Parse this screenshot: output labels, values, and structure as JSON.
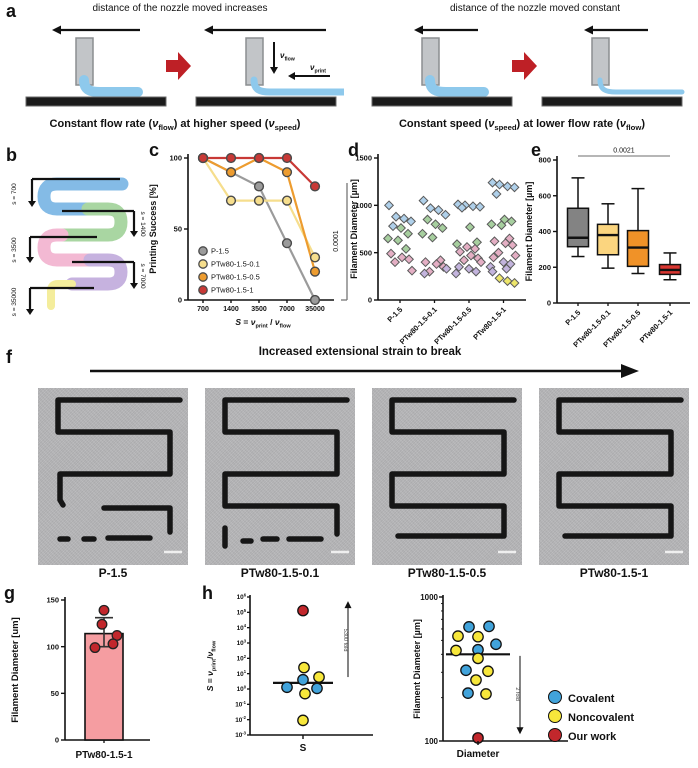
{
  "colors": {
    "accent_red_arrow": "#BE2026",
    "nozzle_gray": "#c2c5c8",
    "filament_blue": "#8ec9ec",
    "substrate": "#1b1b1b",
    "photo_line": "#161616",
    "serpentine": {
      "blue": "#84BBE6",
      "green": "#A9D6A2",
      "pink": "#F3B9D3",
      "purple": "#C6B2DF",
      "yellow": "#F4ED9C"
    },
    "series": {
      "P-1.5": "#9B9B9B",
      "PTw80-1.5-0.1": "#F6DE8D",
      "PTw80-1.5-0.5": "#ED9C2F",
      "PTw80-1.5-1": "#C83936"
    },
    "diamond": {
      "blue": "#AFD0EA",
      "green": "#A7CF9F",
      "pink": "#E4AFC4",
      "purple": "#C3B4DD",
      "yellow": "#EDE66B"
    },
    "box": [
      "#838383",
      "#FBD57F",
      "#F09228",
      "#D93631"
    ],
    "bar_fill": "#F59DA1",
    "dot_red": "#C2272C",
    "covalent_blue": "#41A3DB",
    "noncovalent_yellow": "#F7E73B"
  },
  "panel_a": {
    "label": "a",
    "left": {
      "title": "distance of the nozzle moved increases",
      "caption": [
        [
          "Constant flow rate (",
          ""
        ],
        [
          "ν",
          "i"
        ],
        [
          "flow",
          "sub"
        ],
        [
          ") at higher speed (",
          ""
        ],
        [
          "ν",
          "i"
        ],
        [
          "speed",
          "sub"
        ],
        [
          ")",
          ""
        ]
      ],
      "vflow": [
        [
          "ν",
          "i"
        ],
        [
          "flow",
          "sub"
        ]
      ],
      "vprint": [
        [
          "ν",
          "i"
        ],
        [
          "print",
          "sub"
        ]
      ]
    },
    "right": {
      "title": "distance of the nozzle moved constant",
      "caption": [
        [
          "Constant speed (",
          ""
        ],
        [
          "ν",
          "i"
        ],
        [
          "speed",
          "sub"
        ],
        [
          ") at lower flow rate (",
          ""
        ],
        [
          "ν",
          "i"
        ],
        [
          "flow",
          "sub"
        ],
        [
          ")",
          ""
        ]
      ]
    }
  },
  "panel_b": {
    "label": "b",
    "steps": [
      {
        "label": "s = 700",
        "side": "left",
        "color_key": "blue"
      },
      {
        "label": "s = 1400",
        "side": "right",
        "color_key": "green"
      },
      {
        "label": "s = 3500",
        "side": "left",
        "color_key": "pink"
      },
      {
        "label": "s = 7000",
        "side": "right",
        "color_key": "purple"
      },
      {
        "label": "s = 35000",
        "side": "left",
        "color_key": "yellow"
      }
    ]
  },
  "panel_c": {
    "label": "c"
  },
  "panel_d": {
    "label": "d"
  },
  "panel_e": {
    "label": "e"
  },
  "panel_f": {
    "label": "f",
    "header": "Increased extensional strain to break",
    "photos": [
      {
        "label": "P-1.5",
        "pattern": "broken-early"
      },
      {
        "label": "PTw80-1.5-0.1",
        "pattern": "broken-late"
      },
      {
        "label": "PTw80-1.5-0.5",
        "pattern": "complete"
      },
      {
        "label": "PTw80-1.5-1",
        "pattern": "complete"
      }
    ]
  },
  "panel_g": {
    "label": "g"
  },
  "panel_h": {
    "label": "h",
    "legend": [
      {
        "label": "Covalent",
        "color_key": "covalent_blue"
      },
      {
        "label": "Noncovalent",
        "color_key": "noncovalent_yellow"
      },
      {
        "label": "Our work",
        "color_key": "dot_red"
      }
    ]
  },
  "chart_data": [
    {
      "id": "printing_success",
      "type": "line",
      "ylabel": "Printing Success [%]",
      "xlabel_segments": [
        [
          "S",
          "i"
        ],
        [
          " = ",
          ""
        ],
        [
          "ν",
          "i"
        ],
        [
          "print",
          "sub"
        ],
        [
          " / ",
          ""
        ],
        [
          "ν",
          "i"
        ],
        [
          "flow",
          "sub"
        ]
      ],
      "categories": [
        700,
        1400,
        3500,
        7000,
        35000
      ],
      "ylim": [
        0,
        100
      ],
      "yticks": [
        0,
        50,
        100
      ],
      "significance": "0.0001",
      "legend_position": "bottom-left",
      "series": [
        {
          "name": "P-1.5",
          "color_key": "P-1.5",
          "values": [
            100,
            90,
            80,
            40,
            0
          ]
        },
        {
          "name": "PTw80-1.5-0.1",
          "color_key": "PTw80-1.5-0.1",
          "values": [
            100,
            70,
            70,
            70,
            30
          ]
        },
        {
          "name": "PTw80-1.5-0.5",
          "color_key": "PTw80-1.5-0.5",
          "values": [
            100,
            90,
            100,
            90,
            20
          ]
        },
        {
          "name": "PTw80-1.5-1",
          "color_key": "PTw80-1.5-1",
          "values": [
            100,
            100,
            100,
            100,
            80
          ]
        }
      ]
    },
    {
      "id": "filament_scatter",
      "type": "scatter",
      "marker": "diamond",
      "ylabel": "Filament Diameter [µm]",
      "ylim": [
        0,
        1500
      ],
      "yticks": [
        0,
        500,
        1000,
        1500
      ],
      "categories": [
        "P-1.5",
        "PTw80-1.5-0.1",
        "PTw80-1.5-0.5",
        "PTw80-1.5-1"
      ],
      "groups": [
        {
          "category": "P-1.5",
          "points": {
            "blue": [
              1000,
              880,
              860,
              830,
              780
            ],
            "green": [
              760,
              700,
              650,
              630,
              540
            ],
            "pink": [
              490,
              450,
              430,
              400,
              310
            ]
          }
        },
        {
          "category": "PTw80-1.5-0.1",
          "points": {
            "blue": [
              1050,
              970,
              950,
              900
            ],
            "green": [
              850,
              800,
              760,
              700,
              660
            ],
            "pink": [
              420,
              400,
              380,
              350,
              300
            ],
            "purple": [
              330,
              280
            ]
          }
        },
        {
          "category": "PTw80-1.5-0.5",
          "points": {
            "blue": [
              1010,
              1000,
              990,
              985,
              975
            ],
            "green": [
              770,
              610,
              590
            ],
            "pink": [
              560,
              540,
              510,
              470,
              440,
              420,
              400
            ],
            "purple": [
              350,
              330,
              300,
              280
            ]
          }
        },
        {
          "category": "PTw80-1.5-1",
          "points": {
            "blue": [
              1240,
              1220,
              1200,
              1190,
              1120
            ],
            "green": [
              850,
              830,
              800,
              790
            ],
            "pink": [
              650,
              620,
              600,
              580,
              500,
              470,
              450
            ],
            "purple": [
              400,
              380,
              350,
              330,
              300
            ],
            "yellow": [
              230,
              200,
              180
            ]
          }
        }
      ]
    },
    {
      "id": "filament_box",
      "type": "box",
      "ylabel": "Filament Diameter [µm]",
      "ylim": [
        0,
        800
      ],
      "yticks": [
        0,
        200,
        400,
        600,
        800
      ],
      "categories": [
        "P-1.5",
        "PTw80-1.5-0.1",
        "PTw80-1.5-0.5",
        "PTw80-1.5-1"
      ],
      "significance": {
        "label": "0.0021",
        "from": "P-1.5",
        "to": "PTw80-1.5-1"
      },
      "boxes": [
        {
          "category": "P-1.5",
          "min": 260,
          "q1": 315,
          "median": 365,
          "q3": 530,
          "max": 700
        },
        {
          "category": "PTw80-1.5-0.1",
          "min": 195,
          "q1": 270,
          "median": 380,
          "q3": 440,
          "max": 555
        },
        {
          "category": "PTw80-1.5-0.5",
          "min": 165,
          "q1": 205,
          "median": 310,
          "q3": 405,
          "max": 640
        },
        {
          "category": "PTw80-1.5-1",
          "min": 130,
          "q1": 160,
          "median": 185,
          "q3": 215,
          "max": 280
        }
      ]
    },
    {
      "id": "bar_single",
      "type": "bar",
      "ylabel": "Filament Diameter [um]",
      "ylim": [
        0,
        150
      ],
      "yticks": [
        0,
        50,
        100,
        150
      ],
      "categories": [
        "PTw80-1.5-1"
      ],
      "values": [
        114
      ],
      "error": {
        "low": 100,
        "high": 131
      },
      "points": [
        139,
        124,
        112,
        103,
        99
      ]
    },
    {
      "id": "s_ratio_log",
      "type": "scatter",
      "scale": "log",
      "ylabel_segments": [
        [
          "S",
          "i"
        ],
        [
          " = ",
          ""
        ],
        [
          "ν",
          "i"
        ],
        [
          "print",
          "sub"
        ],
        [
          "/",
          ""
        ],
        [
          "ν",
          "i"
        ],
        [
          "flow",
          "sub"
        ]
      ],
      "xlabel": "S",
      "ylim_exp": [
        -3,
        6
      ],
      "median": 2.5,
      "fold_annotation": {
        "label": "5300 fold",
        "direction": "up"
      },
      "points": [
        {
          "color_key": "dot_red",
          "v": 130000,
          "dx": 0
        },
        {
          "color_key": "noncovalent_yellow",
          "v": 25,
          "dx": 1
        },
        {
          "color_key": "covalent_blue",
          "v": 4,
          "dx": 0
        },
        {
          "color_key": "noncovalent_yellow",
          "v": 6,
          "dx": 16
        },
        {
          "color_key": "covalent_blue",
          "v": 1.3,
          "dx": -16
        },
        {
          "color_key": "covalent_blue",
          "v": 1.1,
          "dx": 14
        },
        {
          "color_key": "noncovalent_yellow",
          "v": 0.5,
          "dx": 2
        },
        {
          "color_key": "noncovalent_yellow",
          "v": 0.009,
          "dx": 0
        }
      ]
    },
    {
      "id": "diameter_log",
      "type": "scatter",
      "scale": "log",
      "ylabel": "Filament Diameter [µm]",
      "xlabel": "Diameter",
      "ylim_exp": [
        2,
        3
      ],
      "yticks": [
        100,
        1000
      ],
      "median": 400,
      "fold_annotation": {
        "label": "2 fold",
        "direction": "down"
      },
      "points": [
        {
          "color_key": "covalent_blue",
          "v": 620,
          "dx": -9
        },
        {
          "color_key": "covalent_blue",
          "v": 625,
          "dx": 11
        },
        {
          "color_key": "noncovalent_yellow",
          "v": 535,
          "dx": -20
        },
        {
          "color_key": "noncovalent_yellow",
          "v": 530,
          "dx": 0
        },
        {
          "color_key": "covalent_blue",
          "v": 470,
          "dx": 18
        },
        {
          "color_key": "noncovalent_yellow",
          "v": 425,
          "dx": -22
        },
        {
          "color_key": "covalent_blue",
          "v": 430,
          "dx": 0
        },
        {
          "color_key": "noncovalent_yellow",
          "v": 375,
          "dx": 0
        },
        {
          "color_key": "covalent_blue",
          "v": 310,
          "dx": -12
        },
        {
          "color_key": "noncovalent_yellow",
          "v": 305,
          "dx": 10
        },
        {
          "color_key": "noncovalent_yellow",
          "v": 265,
          "dx": -2
        },
        {
          "color_key": "covalent_blue",
          "v": 215,
          "dx": -10
        },
        {
          "color_key": "noncovalent_yellow",
          "v": 212,
          "dx": 8
        },
        {
          "color_key": "dot_red",
          "v": 105,
          "dx": 0
        }
      ]
    }
  ]
}
